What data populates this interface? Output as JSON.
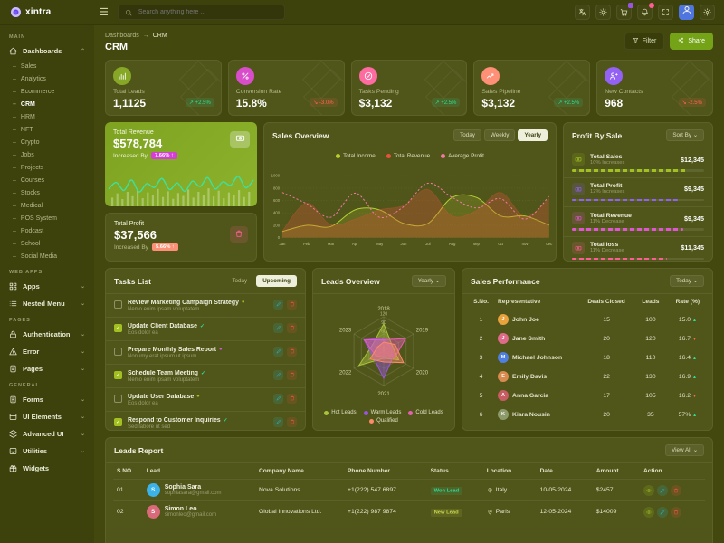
{
  "brand": {
    "name": "xintra"
  },
  "header": {
    "search_placeholder": "Search anything here ...",
    "cart_badge_color": "#9a55e0",
    "bell_badge_color": "#fd5d93"
  },
  "sidebar": {
    "sections": [
      {
        "title": "MAIN",
        "items": [
          {
            "label": "Dashboards",
            "icon": "home",
            "expanded": true,
            "children": [
              {
                "label": "Sales"
              },
              {
                "label": "Analytics"
              },
              {
                "label": "Ecommerce"
              },
              {
                "label": "CRM",
                "active": true
              },
              {
                "label": "HRM"
              },
              {
                "label": "NFT"
              },
              {
                "label": "Crypto"
              },
              {
                "label": "Jobs"
              },
              {
                "label": "Projects"
              },
              {
                "label": "Courses"
              },
              {
                "label": "Stocks"
              },
              {
                "label": "Medical"
              },
              {
                "label": "POS System"
              },
              {
                "label": "Podcast"
              },
              {
                "label": "School"
              },
              {
                "label": "Social Media"
              }
            ]
          }
        ]
      },
      {
        "title": "WEB APPS",
        "items": [
          {
            "label": "Apps",
            "icon": "grid",
            "chevron": true
          },
          {
            "label": "Nested Menu",
            "icon": "nested",
            "chevron": true
          }
        ]
      },
      {
        "title": "PAGES",
        "items": [
          {
            "label": "Authentication",
            "icon": "lock",
            "chevron": true
          },
          {
            "label": "Error",
            "icon": "warning",
            "chevron": true
          },
          {
            "label": "Pages",
            "icon": "pages",
            "chevron": true
          }
        ]
      },
      {
        "title": "GENERAL",
        "items": [
          {
            "label": "Forms",
            "icon": "forms",
            "chevron": true
          },
          {
            "label": "UI Elements",
            "icon": "ui",
            "chevron": true
          },
          {
            "label": "Advanced UI",
            "icon": "advanced",
            "chevron": true
          },
          {
            "label": "Utilities",
            "icon": "utilities",
            "chevron": true
          },
          {
            "label": "Widgets",
            "icon": "widgets",
            "chevron": false
          }
        ]
      }
    ]
  },
  "page": {
    "breadcrumb_root": "Dashboards",
    "breadcrumb_sep": "→",
    "breadcrumb_current": "CRM",
    "title": "CRM",
    "filter_label": "Filter",
    "share_label": "Share"
  },
  "stats": [
    {
      "label": "Total Leads",
      "value": "1,1125",
      "delta": "+2.5%",
      "dir": "up",
      "color": "#86a826",
      "icon": "barchart"
    },
    {
      "label": "Conversion Rate",
      "value": "15.8%",
      "delta": "-3.0%",
      "dir": "down",
      "color": "#d94dcb",
      "icon": "percent"
    },
    {
      "label": "Tasks Pending",
      "value": "$3,132",
      "delta": "+2.5%",
      "dir": "up",
      "color": "#fd6ba0",
      "icon": "checkcircle"
    },
    {
      "label": "Sales Pipeline",
      "value": "$3,132",
      "delta": "+2.5%",
      "dir": "up",
      "color": "#fd9077",
      "icon": "trend"
    },
    {
      "label": "New Contacts",
      "value": "968",
      "delta": "-2.5%",
      "dir": "down",
      "color": "#9361f3",
      "icon": "personplus"
    }
  ],
  "revenue": {
    "label": "Total Revenue",
    "value": "$578,784",
    "increase_text": "Increased By",
    "badge": "7.66% ↑",
    "spark": [
      40,
      62,
      35,
      70,
      30,
      58,
      45,
      75,
      38,
      60,
      32,
      66,
      48,
      78,
      40,
      64,
      52,
      82,
      44,
      70
    ],
    "bars": [
      30,
      45,
      25,
      50,
      35,
      55,
      28,
      48,
      38,
      60,
      32,
      52,
      26,
      46,
      36,
      58,
      30,
      50,
      40,
      62,
      34,
      54,
      28,
      48,
      38,
      56,
      32,
      50
    ]
  },
  "profit": {
    "label": "Total Profit",
    "value": "$37,566",
    "increase_text": "Increased By",
    "badge": "5.66% ↑"
  },
  "salesOverview": {
    "title": "Sales Overview",
    "tabs": [
      "Today",
      "Weekly",
      "Yearly"
    ],
    "active_tab": "Yearly",
    "chart_data": {
      "type": "area",
      "x": [
        "Jan",
        "Feb",
        "Mar",
        "Apr",
        "May",
        "Jun",
        "Jul",
        "Aug",
        "sep",
        "oct",
        "nov",
        "dec"
      ],
      "ylim": [
        0,
        1000
      ],
      "yticks": [
        0,
        200,
        400,
        600,
        800,
        1000
      ],
      "series": [
        {
          "name": "Total Income",
          "color": "#b6cf32",
          "fill": true,
          "values": [
            100,
            200,
            180,
            450,
            450,
            230,
            230,
            650,
            650,
            350,
            350,
            200
          ]
        },
        {
          "name": "Total Revenue",
          "color": "#e6533c",
          "fill": true,
          "area_only": true,
          "values": [
            110,
            560,
            210,
            300,
            450,
            520,
            780,
            350,
            440,
            730,
            340,
            630
          ]
        },
        {
          "name": "Average Profit",
          "color": "#f279a4",
          "dashed": true,
          "values": [
            730,
            550,
            330,
            720,
            330,
            500,
            880,
            650,
            480,
            630,
            300,
            670
          ]
        }
      ]
    }
  },
  "profitBySale": {
    "title": "Profit By Sale",
    "sort_label": "Sort By",
    "items": [
      {
        "label": "Total Sales",
        "sub": "10% Increases",
        "amount": "$12,345",
        "color": "#a3c021",
        "pct": 88
      },
      {
        "label": "Total Profit",
        "sub": "12% Increases",
        "amount": "$9,345",
        "color": "#9061f9",
        "pct": 80
      },
      {
        "label": "Total Revenue",
        "sub": "11% Decrease",
        "amount": "$9,345",
        "color": "#e354d4",
        "pct": 84
      },
      {
        "label": "Total loss",
        "sub": "11% Decrease",
        "amount": "$11,345",
        "color": "#fd5d93",
        "pct": 72
      }
    ]
  },
  "tasks": {
    "title": "Tasks List",
    "today_label": "Today",
    "upcoming_label": "Upcoming",
    "items": [
      {
        "done": false,
        "title": "Review Marketing Campaign Strategy",
        "note": "Nemo enim ipsam voluptatem",
        "mark": "dot",
        "mark_color": "#a3c021"
      },
      {
        "done": true,
        "title": "Update Client Database",
        "note": "Eos dolor ea",
        "mark": "check",
        "mark_color": "#2edd9b"
      },
      {
        "done": false,
        "title": "Prepare Monthly Sales Report",
        "note": "Nonumy erat ipsum ut ipsum",
        "mark": "dot",
        "mark_color": "#c75dd8"
      },
      {
        "done": true,
        "title": "Schedule Team Meeting",
        "note": "Nemo enim ipsam voluptatem",
        "mark": "check",
        "mark_color": "#2edd9b"
      },
      {
        "done": false,
        "title": "Update User Database",
        "note": "Eos dolor ea",
        "mark": "dot",
        "mark_color": "#a3c021"
      },
      {
        "done": true,
        "title": "Respond to Customer Inquiries",
        "note": "Sed labore ut sed",
        "mark": "check",
        "mark_color": "#2edd9b"
      }
    ]
  },
  "leadsOverview": {
    "title": "Leads Overview",
    "range_label": "Yearly",
    "chart_data": {
      "type": "radar",
      "axes": [
        "2018",
        "2019",
        "2020",
        "2021",
        "2022",
        "2023"
      ],
      "rmax": 120,
      "rticks": [
        0,
        30,
        60,
        90,
        120
      ],
      "series": [
        {
          "name": "Hot Leads",
          "color": "#a8c43b",
          "values": [
            95,
            35,
            60,
            25,
            100,
            45
          ]
        },
        {
          "name": "Warm Leads",
          "color": "#9a55e0",
          "values": [
            45,
            30,
            38,
            95,
            42,
            80
          ]
        },
        {
          "name": "Cold Leads",
          "color": "#e75db6",
          "values": [
            40,
            88,
            45,
            20,
            32,
            78
          ]
        },
        {
          "name": "Qualified",
          "color": "#fd8a69",
          "values": [
            32,
            46,
            80,
            38,
            55,
            26
          ]
        }
      ]
    }
  },
  "salesPerformance": {
    "title": "Sales Performance",
    "range_label": "Today",
    "columns": [
      "S.No.",
      "Representative",
      "Deals Closed",
      "Leads",
      "Rate (%)"
    ],
    "rows": [
      {
        "no": "1",
        "name": "John Joe",
        "deals": "15",
        "leads": "100",
        "rate": "15.0",
        "dir": "up",
        "avatar_color": "#e8a33d"
      },
      {
        "no": "2",
        "name": "Jane Smith",
        "deals": "20",
        "leads": "120",
        "rate": "16.7",
        "dir": "down",
        "avatar_color": "#e06a8a"
      },
      {
        "no": "3",
        "name": "Michael Johnson",
        "deals": "18",
        "leads": "110",
        "rate": "16.4",
        "dir": "up",
        "avatar_color": "#4f7fe0"
      },
      {
        "no": "4",
        "name": "Emily Davis",
        "deals": "22",
        "leads": "130",
        "rate": "16.9",
        "dir": "up",
        "avatar_color": "#d98a4f"
      },
      {
        "no": "5",
        "name": "Anna Garcia",
        "deals": "17",
        "leads": "105",
        "rate": "16.2",
        "dir": "down",
        "avatar_color": "#c75d62"
      },
      {
        "no": "6",
        "name": "Kiara Nousin",
        "deals": "20",
        "leads": "35",
        "rate": "57%",
        "dir": "up",
        "avatar_color": "#8d9b6a"
      }
    ]
  },
  "leadsReport": {
    "title": "Leads Report",
    "view_all_label": "View All",
    "columns": [
      "S.NO",
      "Lead",
      "Company Name",
      "Phone Number",
      "Status",
      "Location",
      "Date",
      "Amount",
      "Action"
    ],
    "rows": [
      {
        "no": "01",
        "name": "Sophia Sara",
        "email": "sophiasara@gmail.com",
        "phone": "+1(222) 547 6897",
        "company": "Nova Solutions",
        "status": "Won Lead",
        "status_color": "#2edd9b",
        "location": "Italy",
        "date": "10-05-2024",
        "amount": "$2457",
        "avatar_color": "#3bb3e8"
      },
      {
        "no": "02",
        "name": "Simon Leo",
        "email": "simonleo@gmail.com",
        "phone": "+1(222) 987 9874",
        "company": "Global Innovations Ltd.",
        "status": "New Lead",
        "status_color": "#c9d44e",
        "location": "Paris",
        "date": "12-05-2024",
        "amount": "$14009",
        "avatar_color": "#d96a7a"
      }
    ]
  }
}
